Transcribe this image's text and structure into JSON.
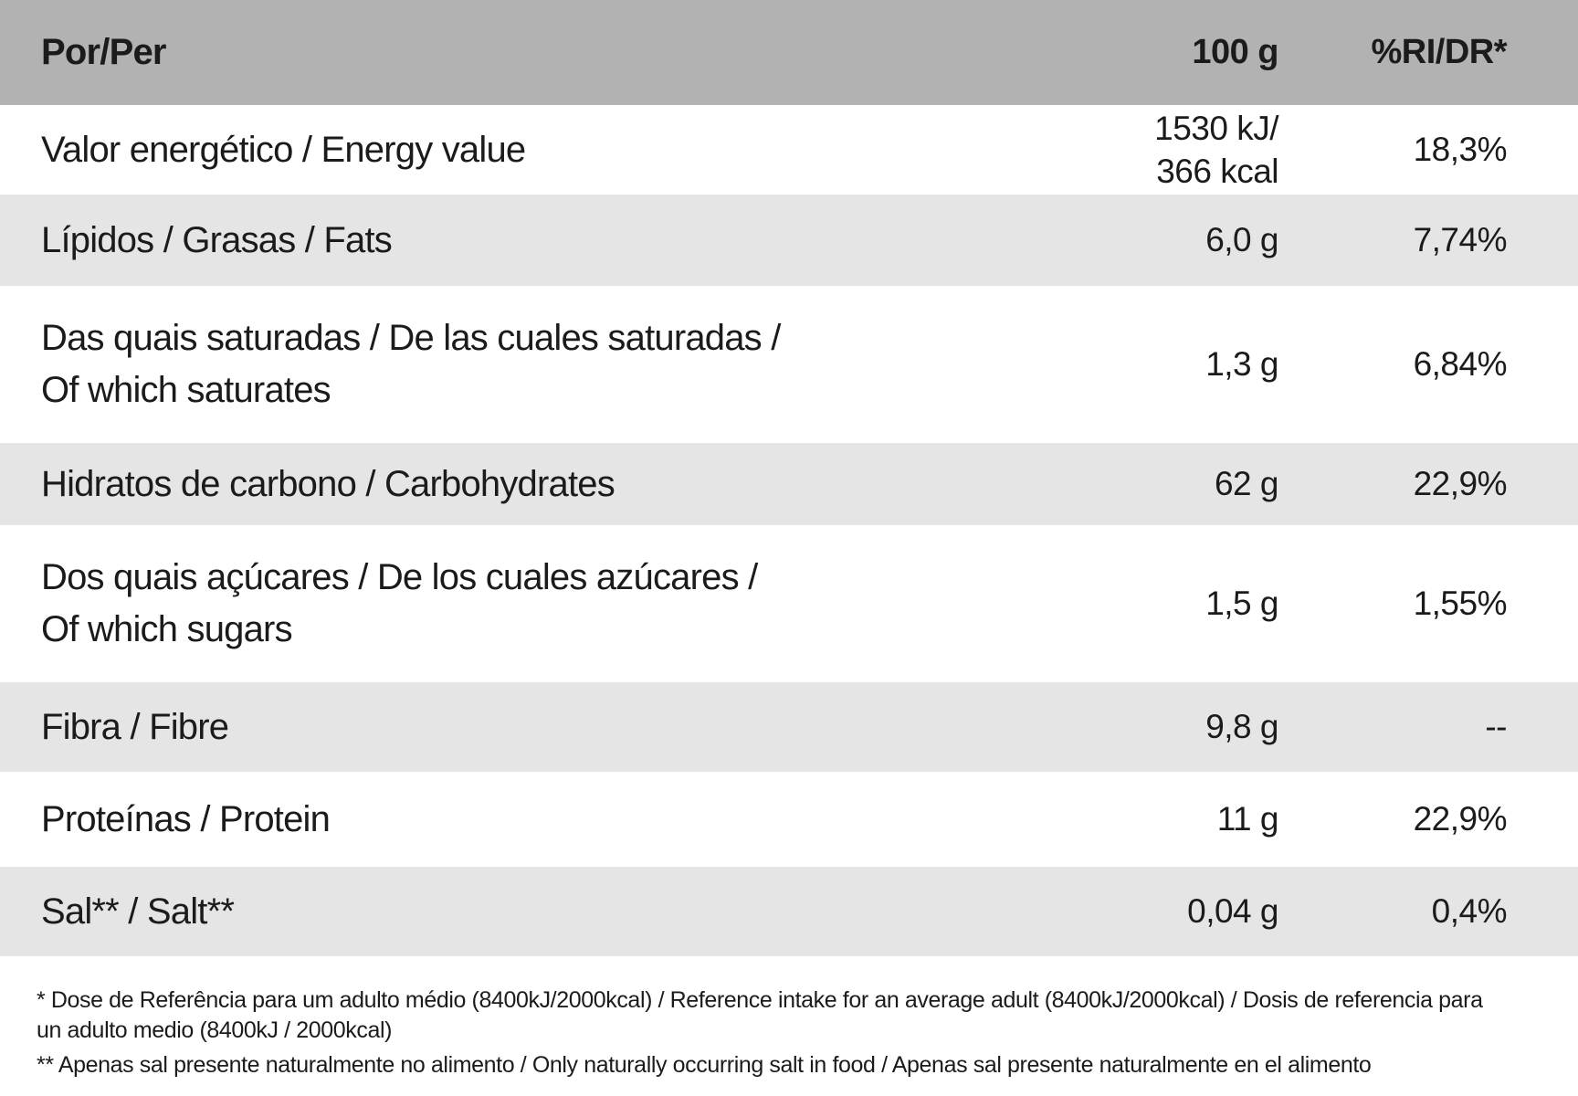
{
  "table": {
    "header": {
      "col_label": "Por/Per",
      "col_amount": "100 g",
      "col_ri": "%RI/DR*"
    },
    "rows": [
      {
        "label": "Valor energético / Energy value",
        "amount": "1530 kJ/\n366 kcal",
        "ri": "18,3%"
      },
      {
        "label": "Lípidos / Grasas / Fats",
        "amount": "6,0 g",
        "ri": "7,74%"
      },
      {
        "label": "Das quais saturadas / De las cuales saturadas /\nOf which saturates",
        "amount": "1,3 g",
        "ri": "6,84%"
      },
      {
        "label": "Hidratos de carbono / Carbohydrates",
        "amount": "62 g",
        "ri": "22,9%"
      },
      {
        "label": "Dos quais açúcares / De los cuales azúcares /\nOf which sugars",
        "amount": "1,5 g",
        "ri": "1,55%"
      },
      {
        "label": "Fibra / Fibre",
        "amount": "9,8 g",
        "ri": "--"
      },
      {
        "label": "Proteínas / Protein",
        "amount": "11 g",
        "ri": "22,9%"
      },
      {
        "label": "Sal** / Salt**",
        "amount": "0,04 g",
        "ri": "0,4%"
      }
    ],
    "footnotes": [
      "* Dose de Referência para um adulto médio (8400kJ/2000kcal) / Reference intake for an average adult (8400kJ/2000kcal) / Dosis de referencia para\nun adulto medio (8400kJ / 2000kcal)",
      "** Apenas sal presente naturalmente no alimento / Only naturally occurring salt in food / Apenas sal presente naturalmente en el alimento"
    ]
  },
  "colors": {
    "header_bg": "#b2b2b2",
    "row_shade_bg": "#e5e5e5",
    "row_plain_bg": "#ffffff",
    "text": "#1b1b1a"
  }
}
